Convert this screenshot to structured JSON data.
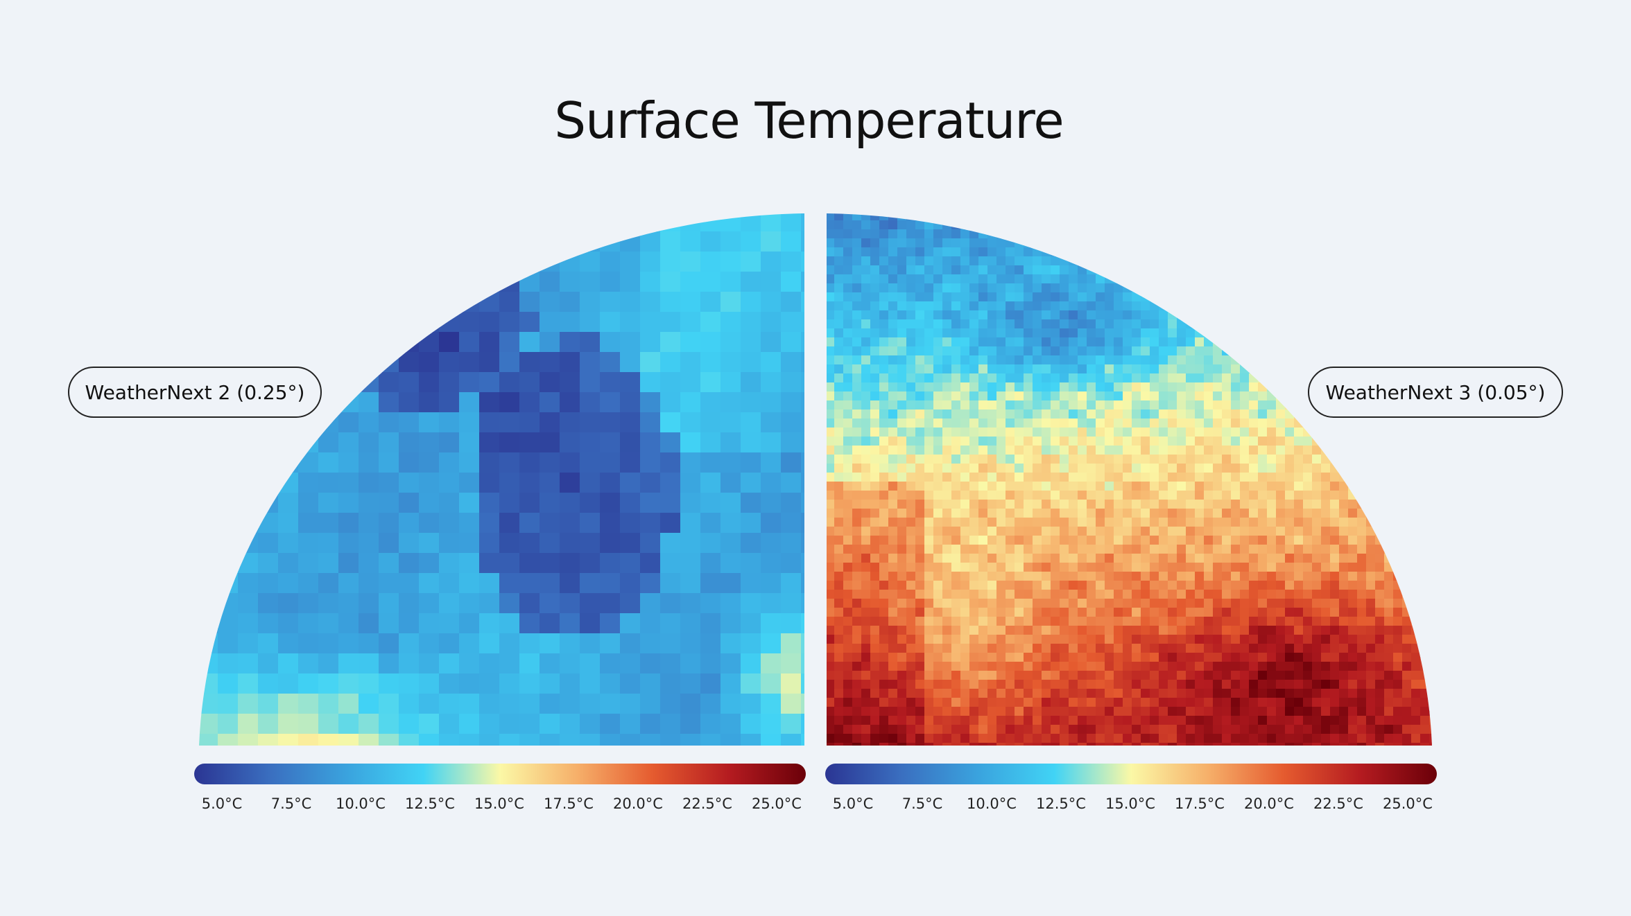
{
  "title": "Surface Temperature",
  "panels": [
    {
      "label": "WeatherNext 2 (0.25°)"
    },
    {
      "label": "WeatherNext 3 (0.05°)"
    }
  ],
  "colorbar": {
    "ticks": [
      "5.0°C",
      "7.5°C",
      "10.0°C",
      "12.5°C",
      "15.0°C",
      "17.5°C",
      "20.0°C",
      "22.5°C",
      "25.0°C"
    ],
    "colors": [
      "#2b3593",
      "#3a6fc0",
      "#3aa3de",
      "#41d3f5",
      "#fbf8a6",
      "#f6b06a",
      "#e55b2f",
      "#b41b20",
      "#6b0009"
    ]
  }
}
